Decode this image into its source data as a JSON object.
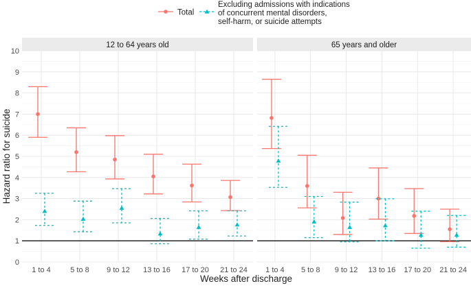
{
  "chart_data": {
    "type": "errorbar",
    "ylabel": "Hazard ratio for suicide",
    "xlabel": "Weeks after discharge",
    "ylim": [
      0,
      10
    ],
    "yticks": [
      0,
      1,
      2,
      3,
      4,
      5,
      6,
      7,
      8,
      9,
      10
    ],
    "reference_line": 1,
    "categories": [
      "1 to 4",
      "5 to 8",
      "9 to 12",
      "13 to 16",
      "17 to 20",
      "21 to 24"
    ],
    "legend": {
      "position": "top",
      "series": [
        {
          "name": "Total",
          "color": "#F8766D",
          "marker": "circle",
          "line": "solid"
        },
        {
          "name_lines": [
            "Excluding admissions with indications",
            "of concurrent mental disorders,",
            "self-harm, or suicide attempts"
          ],
          "color": "#00BFC4",
          "marker": "triangle",
          "line": "dashed"
        }
      ]
    },
    "panels": [
      {
        "title": "12 to 64 years old",
        "series": [
          {
            "name": "Total",
            "estimate": [
              7.0,
              5.2,
              4.85,
              4.05,
              3.62,
              3.07
            ],
            "lower": [
              5.9,
              4.27,
              3.93,
              3.22,
              2.84,
              2.43
            ],
            "upper": [
              8.3,
              6.35,
              5.98,
              5.1,
              4.63,
              3.86
            ]
          },
          {
            "name": "Excluding",
            "estimate": [
              2.4,
              2.03,
              2.55,
              1.33,
              1.64,
              1.76
            ],
            "lower": [
              1.73,
              1.43,
              1.85,
              0.86,
              1.08,
              1.23
            ],
            "upper": [
              3.25,
              2.88,
              3.47,
              2.06,
              2.42,
              2.42
            ]
          }
        ]
      },
      {
        "title": "65 years and older",
        "series": [
          {
            "name": "Total",
            "estimate": [
              6.82,
              3.6,
              2.08,
              3.0,
              2.18,
              1.55
            ],
            "lower": [
              5.37,
              2.56,
              1.3,
              2.03,
              1.35,
              0.96
            ],
            "upper": [
              8.65,
              5.05,
              3.3,
              4.45,
              3.47,
              2.5
            ]
          },
          {
            "name": "Excluding",
            "estimate": [
              4.78,
              1.9,
              1.64,
              1.72,
              1.27,
              1.27
            ],
            "lower": [
              3.53,
              1.15,
              0.95,
              1.0,
              0.65,
              0.7
            ],
            "upper": [
              6.42,
              3.1,
              2.83,
              2.99,
              2.4,
              2.2
            ]
          }
        ]
      }
    ]
  }
}
